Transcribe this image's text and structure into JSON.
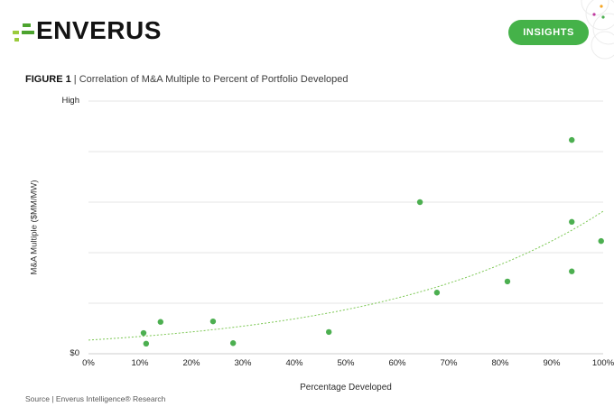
{
  "header": {
    "logo_text": "ENVERUS",
    "insights_label": "INSIGHTS"
  },
  "figure": {
    "label": "FIGURE 1",
    "separator": " | ",
    "title": "Correlation of M&A Multiple to Percent of Portfolio Developed"
  },
  "source": "Source | Enverus Intelligence® Research",
  "colors": {
    "brand_button_green": "#45B249",
    "point_green": "#4CAF50",
    "trend_green": "#7DC855",
    "logo_dark_green": "#4CA32E",
    "logo_light_green": "#9BCB3C",
    "gridline": "#E6E6E6",
    "axis_line": "#CCCCCC",
    "deco_dot_orange": "#F5A623",
    "deco_dot_magenta": "#C0399F",
    "deco_dot_green": "#4CAF50",
    "deco_circle_stroke": "#ECECEC"
  },
  "chart_data": {
    "type": "scatter",
    "title": "Correlation of M&A Multiple to Percent of Portfolio Developed",
    "xlabel": "Percentage Developed",
    "ylabel": "M&A Multiple ($MM/MW)",
    "x_ticks": [
      "0%",
      "10%",
      "20%",
      "30%",
      "40%",
      "50%",
      "60%",
      "70%",
      "80%",
      "90%",
      "100%"
    ],
    "y_ticks": {
      "top": "High",
      "bottom": "$0"
    },
    "xlim": [
      0,
      100
    ],
    "ylim": [
      0,
      5
    ],
    "y_units_note": "relative scale: 0 = $0 gridline, 5 = 'High' gridline",
    "grid": "horizontal",
    "legend": "none",
    "points": [
      {
        "x": 10.7,
        "y": 0.41
      },
      {
        "x": 11.2,
        "y": 0.2
      },
      {
        "x": 14.0,
        "y": 0.63
      },
      {
        "x": 24.2,
        "y": 0.64
      },
      {
        "x": 28.1,
        "y": 0.21
      },
      {
        "x": 46.7,
        "y": 0.43
      },
      {
        "x": 64.4,
        "y": 3.0
      },
      {
        "x": 67.7,
        "y": 1.21
      },
      {
        "x": 81.4,
        "y": 1.43
      },
      {
        "x": 93.9,
        "y": 4.23
      },
      {
        "x": 93.9,
        "y": 2.61
      },
      {
        "x": 93.9,
        "y": 1.63
      },
      {
        "x": 99.6,
        "y": 2.23
      }
    ],
    "trendline": {
      "style": "dotted",
      "type": "exponential",
      "y_at_x0": 0.27,
      "y_at_x100": 2.82
    }
  }
}
